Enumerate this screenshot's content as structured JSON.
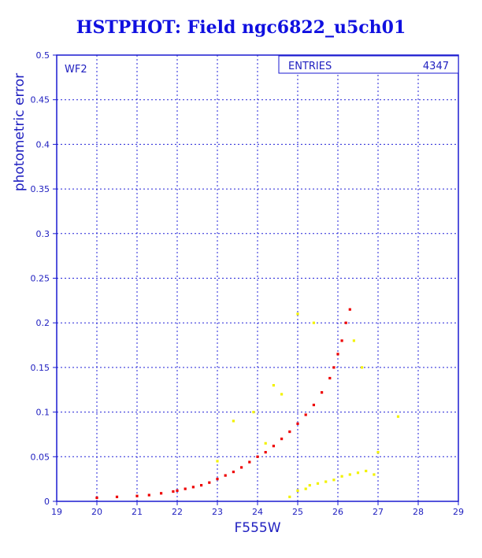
{
  "chart_data": {
    "type": "scatter",
    "title": "HSTPHOT: Field ngc6822_u5ch01",
    "xlabel": "F555W",
    "ylabel": "photometric error",
    "panel_label": "WF2",
    "stats_box": {
      "label": "ENTRIES",
      "value": "4347"
    },
    "xlim": [
      19,
      29
    ],
    "ylim": [
      0,
      0.5
    ],
    "x_ticks": [
      "19",
      "20",
      "21",
      "22",
      "23",
      "24",
      "25",
      "26",
      "27",
      "28",
      "29"
    ],
    "y_ticks": [
      "0",
      "0.05",
      "0.1",
      "0.15",
      "0.2",
      "0.25",
      "0.3",
      "0.35",
      "0.4",
      "0.45",
      "0.5"
    ],
    "grid": true,
    "colors": {
      "frame": "#1a1ad0",
      "grid": "#2222d8",
      "main": "#ee0000",
      "outlier": "#f2f200"
    },
    "series": [
      {
        "color": "#ee0000",
        "x": [
          20.0,
          20.5,
          21.0,
          21.3,
          21.6,
          21.9,
          22.0,
          22.2,
          22.4,
          22.6,
          22.8,
          23.0,
          23.2,
          23.4,
          23.6,
          23.8,
          24.0,
          24.2,
          24.4,
          24.6,
          24.8,
          25.0,
          25.2,
          25.4,
          25.6,
          25.8,
          25.9,
          26.0,
          26.1,
          26.2,
          26.3
        ],
        "y": [
          0.004,
          0.005,
          0.006,
          0.007,
          0.009,
          0.011,
          0.012,
          0.014,
          0.016,
          0.018,
          0.021,
          0.025,
          0.029,
          0.033,
          0.038,
          0.044,
          0.05,
          0.055,
          0.062,
          0.07,
          0.078,
          0.087,
          0.097,
          0.108,
          0.122,
          0.138,
          0.15,
          0.165,
          0.18,
          0.2,
          0.215
        ]
      },
      {
        "color": "#f2f200",
        "x": [
          23.0,
          23.4,
          23.9,
          24.2,
          24.4,
          24.6,
          24.8,
          25.0,
          25.2,
          25.3,
          25.5,
          25.7,
          25.9,
          26.1,
          26.3,
          26.5,
          26.7,
          26.9,
          25.0,
          25.4,
          26.4,
          26.6,
          27.0,
          27.5
        ],
        "y": [
          0.045,
          0.09,
          0.1,
          0.065,
          0.13,
          0.12,
          0.005,
          0.012,
          0.014,
          0.018,
          0.02,
          0.022,
          0.024,
          0.028,
          0.03,
          0.032,
          0.034,
          0.03,
          0.21,
          0.2,
          0.18,
          0.15,
          0.055,
          0.095
        ]
      }
    ]
  }
}
